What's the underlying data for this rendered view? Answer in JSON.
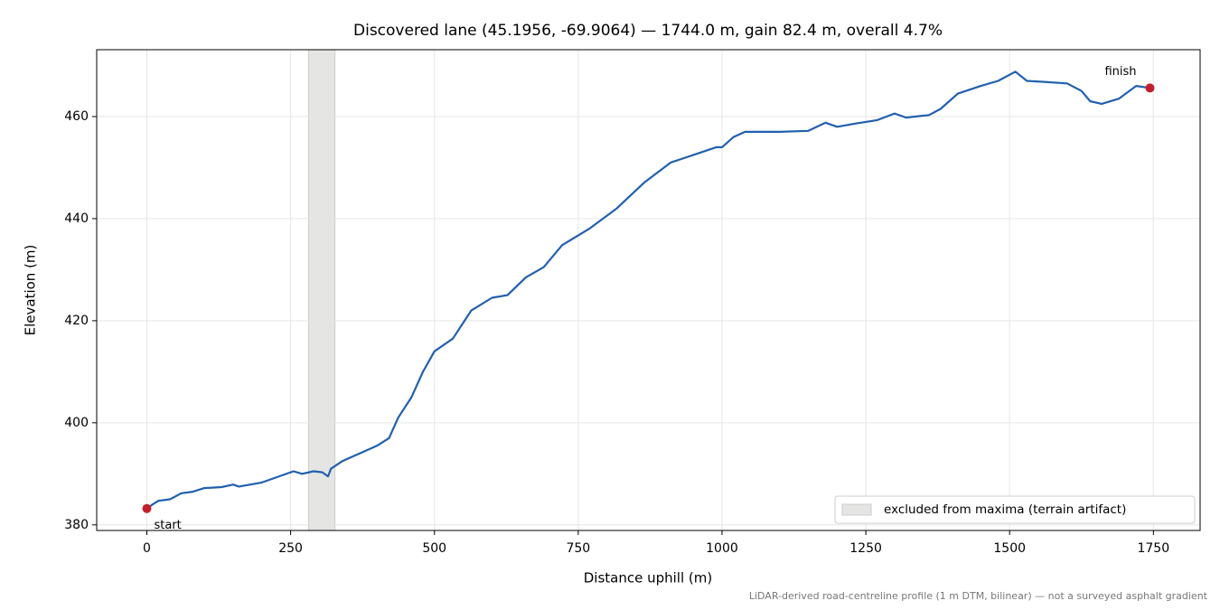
{
  "chart_data": {
    "type": "line",
    "title": "Discovered lane (45.1956, -69.9064) — 1744.0 m, gain 82.4 m, overall 4.7%",
    "xlabel": "Distance uphill (m)",
    "ylabel": "Elevation (m)",
    "footnote": "LiDAR-derived road-centreline profile (1 m DTM, bilinear) — not a surveyed asphalt gradient",
    "x": [
      0,
      10,
      20,
      40,
      60,
      80,
      100,
      130,
      150,
      160,
      200,
      230,
      255,
      270,
      290,
      305,
      315,
      320,
      340,
      370,
      400,
      421,
      437,
      460,
      480,
      500,
      532,
      564,
      600,
      627,
      659,
      690,
      722,
      769,
      817,
      864,
      911,
      959,
      990,
      1000,
      1020,
      1040,
      1100,
      1150,
      1180,
      1200,
      1230,
      1270,
      1300,
      1320,
      1360,
      1380,
      1410,
      1450,
      1480,
      1510,
      1530,
      1560,
      1600,
      1625,
      1640,
      1660,
      1690,
      1720,
      1744
    ],
    "series": [
      {
        "name": "profile",
        "color": "#2160ad",
        "values": [
          383.2,
          384,
          384.7,
          385,
          386.2,
          386.5,
          387.2,
          387.4,
          387.9,
          387.5,
          388.3,
          389.5,
          390.5,
          390,
          390.5,
          390.3,
          389.5,
          391,
          392.5,
          394,
          395.5,
          397,
          401,
          405,
          410,
          414,
          416.5,
          422,
          424.5,
          425,
          428.5,
          430.5,
          434.8,
          438,
          442,
          447,
          451,
          452.8,
          454,
          454,
          456,
          457,
          457,
          457.2,
          458.8,
          458,
          458.6,
          459.3,
          460.6,
          459.8,
          460.3,
          461.5,
          464.5,
          466,
          467,
          468.8,
          467,
          466.8,
          466.5,
          465,
          463,
          462.5,
          463.5,
          466,
          465.6
        ]
      }
    ],
    "marker_color": "#c0202a",
    "annotations": [
      "start",
      "finish"
    ],
    "band": {
      "label": "excluded from maxima (terrain artifact)",
      "range": [
        281,
        327
      ],
      "color": "#e5e5e3"
    },
    "xlim": [
      -87.2,
      1831.2
    ],
    "ylim": [
      378.9,
      473.1
    ],
    "xticks": [
      0,
      250,
      500,
      750,
      1000,
      1250,
      1500,
      1750
    ],
    "yticks": [
      380,
      400,
      420,
      440,
      460
    ],
    "grid": true,
    "legend": "lower right"
  }
}
